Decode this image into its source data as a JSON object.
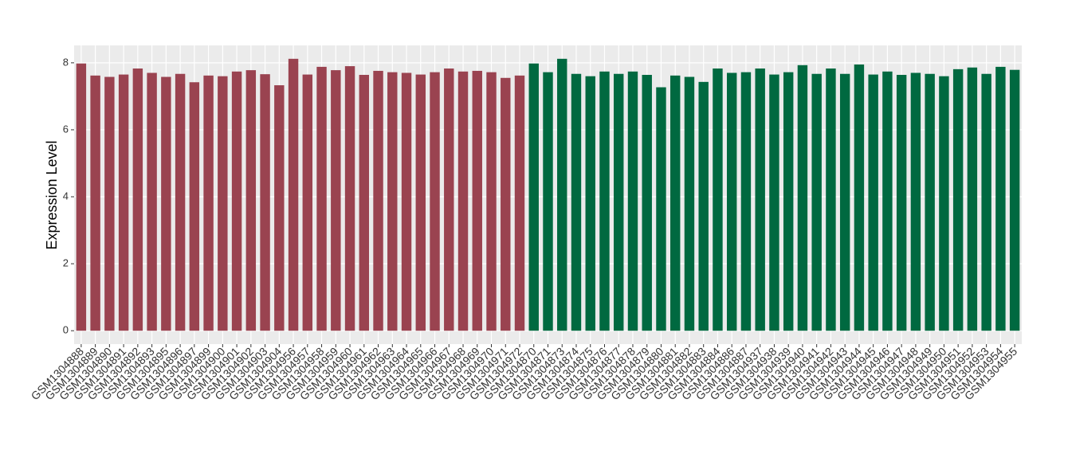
{
  "chart_data": {
    "type": "bar",
    "y_label": "Expression Level",
    "categories": [
      "GSM1304888",
      "GSM1304889",
      "GSM1304890",
      "GSM1304891",
      "GSM1304892",
      "GSM1304893",
      "GSM1304895",
      "GSM1304896",
      "GSM1304897",
      "GSM1304899",
      "GSM1304900",
      "GSM1304901",
      "GSM1304902",
      "GSM1304903",
      "GSM1304904",
      "GSM1304956",
      "GSM1304957",
      "GSM1304958",
      "GSM1304959",
      "GSM1304960",
      "GSM1304961",
      "GSM1304962",
      "GSM1304963",
      "GSM1304964",
      "GSM1304965",
      "GSM1304966",
      "GSM1304967",
      "GSM1304968",
      "GSM1304969",
      "GSM1304970",
      "GSM1304971",
      "GSM1304972",
      "GSM1304870",
      "GSM1304871",
      "GSM1304873",
      "GSM1304874",
      "GSM1304875",
      "GSM1304876",
      "GSM1304877",
      "GSM1304878",
      "GSM1304879",
      "GSM1304880",
      "GSM1304881",
      "GSM1304882",
      "GSM1304883",
      "GSM1304884",
      "GSM1304886",
      "GSM1304887",
      "GSM1304937",
      "GSM1304938",
      "GSM1304939",
      "GSM1304940",
      "GSM1304941",
      "GSM1304942",
      "GSM1304943",
      "GSM1304944",
      "GSM1304945",
      "GSM1304946",
      "GSM1304947",
      "GSM1304948",
      "GSM1304949",
      "GSM1304950",
      "GSM1304951",
      "GSM1304952",
      "GSM1304953",
      "GSM1304954",
      "GSM1304955"
    ],
    "series": [
      {
        "color": "#9a4350",
        "values": [
          7.98,
          7.62,
          7.58,
          7.65,
          7.83,
          7.7,
          7.58,
          7.67,
          7.42,
          7.62,
          7.6,
          7.74,
          7.78,
          7.66,
          7.33,
          8.12,
          7.65,
          7.88,
          7.78,
          7.9,
          7.64,
          7.76,
          7.72,
          7.7,
          7.65,
          7.72,
          7.83,
          7.74,
          7.76,
          7.72,
          7.55,
          7.62,
          null,
          null,
          null,
          null,
          null,
          null,
          null,
          null,
          null,
          null,
          null,
          null,
          null,
          null,
          null,
          null,
          null,
          null,
          null,
          null,
          null,
          null,
          null,
          null,
          null,
          null,
          null,
          null,
          null,
          null,
          null,
          null,
          null,
          null,
          null
        ]
      },
      {
        "color": "#006940",
        "values": [
          null,
          null,
          null,
          null,
          null,
          null,
          null,
          null,
          null,
          null,
          null,
          null,
          null,
          null,
          null,
          null,
          null,
          null,
          null,
          null,
          null,
          null,
          null,
          null,
          null,
          null,
          null,
          null,
          null,
          null,
          null,
          null,
          7.98,
          7.72,
          8.12,
          7.67,
          7.6,
          7.74,
          7.67,
          7.74,
          7.64,
          7.27,
          7.62,
          7.58,
          7.43,
          7.83,
          7.7,
          7.72,
          7.83,
          7.65,
          7.72,
          7.93,
          7.67,
          7.83,
          7.67,
          7.95,
          7.65,
          7.74,
          7.64,
          7.7,
          7.67,
          7.6,
          7.81,
          7.86,
          7.67,
          7.88,
          7.79
        ]
      }
    ],
    "ylim": [
      -0.4,
      8.52
    ],
    "yticks": [
      0,
      2,
      4,
      6,
      8
    ],
    "grid": true
  }
}
